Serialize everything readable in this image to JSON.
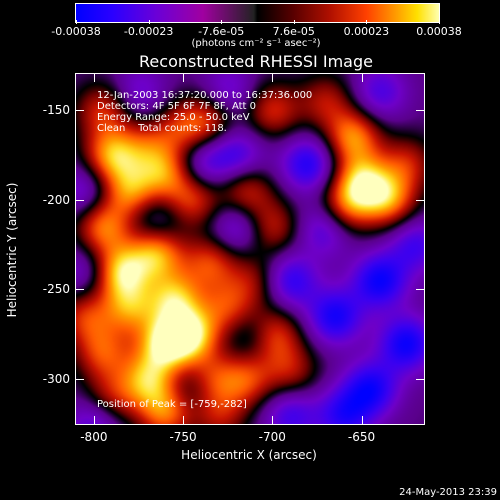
{
  "colorbar": {
    "labels": [
      "-0.00038",
      "-0.00023",
      "-7.6e-05",
      "7.6e-05",
      "0.00023",
      "0.00038"
    ],
    "units": "(photons cm⁻² s⁻¹ asec⁻²)"
  },
  "title": "Reconstructed RHESSI Image",
  "annotations": {
    "time_range": "12-Jan-2003 16:37:20.000 to 16:37:36.000",
    "detectors": "Detectors: 4F 5F 6F 7F 8F, Att 0",
    "energy": "Energy Range: 25.0 - 50.0 keV",
    "clean": "Clean    Total counts: 118.",
    "peak": "Position of Peak = [-759,-282]"
  },
  "axes": {
    "xlabel": "Heliocentric X (arcsec)",
    "ylabel": "Heliocentric Y (arcsec)",
    "x_ticks": [
      "-800",
      "-750",
      "-700",
      "-650"
    ],
    "y_ticks": [
      "-150",
      "-200",
      "-250",
      "-300"
    ],
    "xlim": [
      -810,
      -615
    ],
    "ylim": [
      -325,
      -130
    ]
  },
  "blobs": [
    {
      "x": -795,
      "y": -150,
      "v": 0.55
    },
    {
      "x": -790,
      "y": -175,
      "v": 0.85
    },
    {
      "x": -780,
      "y": -195,
      "v": 0.75
    },
    {
      "x": -770,
      "y": -170,
      "v": 0.45
    },
    {
      "x": -760,
      "y": -185,
      "v": 0.7
    },
    {
      "x": -750,
      "y": -160,
      "v": 0.5
    },
    {
      "x": -745,
      "y": -200,
      "v": 0.6
    },
    {
      "x": -795,
      "y": -215,
      "v": 0.75
    },
    {
      "x": -785,
      "y": -240,
      "v": 0.95
    },
    {
      "x": -765,
      "y": -230,
      "v": 0.85
    },
    {
      "x": -755,
      "y": -255,
      "v": 0.85
    },
    {
      "x": -760,
      "y": -280,
      "v": 1.0
    },
    {
      "x": -745,
      "y": -275,
      "v": 0.9
    },
    {
      "x": -770,
      "y": -300,
      "v": 0.8
    },
    {
      "x": -760,
      "y": -318,
      "v": 0.75
    },
    {
      "x": -795,
      "y": -285,
      "v": 0.6
    },
    {
      "x": -790,
      "y": -310,
      "v": 0.45
    },
    {
      "x": -735,
      "y": -300,
      "v": 0.55
    },
    {
      "x": -725,
      "y": -260,
      "v": 0.55
    },
    {
      "x": -735,
      "y": -235,
      "v": 0.6
    },
    {
      "x": -710,
      "y": -245,
      "v": 0.4
    },
    {
      "x": -700,
      "y": -275,
      "v": 0.7
    },
    {
      "x": -715,
      "y": -300,
      "v": 0.6
    },
    {
      "x": -690,
      "y": -295,
      "v": 0.45
    },
    {
      "x": -735,
      "y": -155,
      "v": 0.5
    },
    {
      "x": -700,
      "y": -150,
      "v": 0.55
    },
    {
      "x": -670,
      "y": -145,
      "v": 0.45
    },
    {
      "x": -655,
      "y": -165,
      "v": 0.8
    },
    {
      "x": -650,
      "y": -190,
      "v": 0.9
    },
    {
      "x": -635,
      "y": -200,
      "v": 0.75
    },
    {
      "x": -660,
      "y": -205,
      "v": 0.65
    },
    {
      "x": -625,
      "y": -180,
      "v": 0.5
    },
    {
      "x": -715,
      "y": -195,
      "v": 0.55
    },
    {
      "x": -700,
      "y": -215,
      "v": 0.5
    },
    {
      "x": -805,
      "y": -265,
      "v": 0.55
    },
    {
      "x": -780,
      "y": -260,
      "v": 0.7
    },
    {
      "x": -730,
      "y": -320,
      "v": 0.45
    },
    {
      "x": -680,
      "y": -180,
      "v": -0.65
    },
    {
      "x": -670,
      "y": -215,
      "v": -0.55
    },
    {
      "x": -690,
      "y": -245,
      "v": -0.6
    },
    {
      "x": -665,
      "y": -265,
      "v": -0.7
    },
    {
      "x": -640,
      "y": -245,
      "v": -0.75
    },
    {
      "x": -625,
      "y": -280,
      "v": -0.75
    },
    {
      "x": -645,
      "y": -305,
      "v": -0.7
    },
    {
      "x": -660,
      "y": -320,
      "v": -0.6
    },
    {
      "x": -690,
      "y": -320,
      "v": -0.5
    },
    {
      "x": -720,
      "y": -175,
      "v": -0.5
    },
    {
      "x": -740,
      "y": -180,
      "v": -0.45
    },
    {
      "x": -765,
      "y": -210,
      "v": -0.3
    },
    {
      "x": -720,
      "y": -215,
      "v": -0.45
    },
    {
      "x": -725,
      "y": -140,
      "v": -0.4
    },
    {
      "x": -805,
      "y": -195,
      "v": -0.4
    },
    {
      "x": -805,
      "y": -240,
      "v": -0.35
    },
    {
      "x": -800,
      "y": -325,
      "v": -0.45
    },
    {
      "x": -775,
      "y": -140,
      "v": -0.35
    },
    {
      "x": -640,
      "y": -140,
      "v": -0.45
    },
    {
      "x": -620,
      "y": -225,
      "v": -0.5
    },
    {
      "x": -710,
      "y": -275,
      "v": -0.35
    },
    {
      "x": -745,
      "y": -305,
      "v": -0.3
    }
  ],
  "stamp": "24-May-2013 23:39"
}
